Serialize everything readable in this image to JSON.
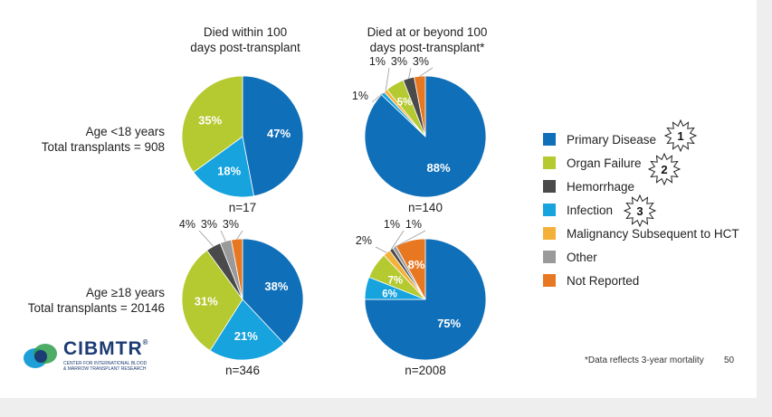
{
  "headers": {
    "col1": "Died within 100 days post-transplant",
    "col1_line1": "Died within 100",
    "col1_line2": "days post-transplant",
    "col2_line1": "Died at or beyond 100",
    "col2_line2": "days post-transplant*"
  },
  "rows": [
    {
      "line1": "Age <18 years",
      "line2": "Total transplants = 908"
    },
    {
      "line1": "Age ≥18 years",
      "line2": "Total transplants = 20146"
    }
  ],
  "legend": [
    {
      "label": "Primary Disease",
      "color": "#0f6fb8"
    },
    {
      "label": "Organ Failure",
      "color": "#b5c930"
    },
    {
      "label": "Hemorrhage",
      "color": "#4a4a4a"
    },
    {
      "label": "Infection",
      "color": "#16a3de"
    },
    {
      "label": "Malignancy Subsequent to HCT",
      "color": "#f4b13a"
    },
    {
      "label": "Other",
      "color": "#9a9a9a"
    },
    {
      "label": "Not Reported",
      "color": "#e87722"
    }
  ],
  "annotations": [
    "1",
    "2",
    "3"
  ],
  "footnote": "*Data reflects 3-year mortality",
  "page_number": "50",
  "logo": {
    "name": "CIBMTR",
    "reg": "®",
    "sub1": "CENTER FOR INTERNATIONAL BLOOD",
    "sub2": "& MARROW TRANSPLANT RESEARCH"
  },
  "chart_data": [
    {
      "type": "pie",
      "row": "Age <18 years",
      "column": "Died within 100 days post-transplant",
      "n_label": "n=17",
      "slices": [
        {
          "category": "Primary Disease",
          "value": 47,
          "label": "47%"
        },
        {
          "category": "Infection",
          "value": 18,
          "label": "18%"
        },
        {
          "category": "Organ Failure",
          "value": 35,
          "label": "35%"
        }
      ]
    },
    {
      "type": "pie",
      "row": "Age <18 years",
      "column": "Died at or beyond 100 days post-transplant",
      "n_label": "n=140",
      "slices": [
        {
          "category": "Primary Disease",
          "value": 88,
          "label": "88%"
        },
        {
          "category": "Infection",
          "value": 1,
          "label": "1%"
        },
        {
          "category": "Malignancy Subsequent to HCT",
          "value": 1,
          "label": "1%"
        },
        {
          "category": "Organ Failure",
          "value": 5,
          "label": "5%"
        },
        {
          "category": "Hemorrhage",
          "value": 3,
          "label": "3%"
        },
        {
          "category": "Not Reported",
          "value": 3,
          "label": "3%"
        }
      ]
    },
    {
      "type": "pie",
      "row": "Age ≥18 years",
      "column": "Died within 100 days post-transplant",
      "n_label": "n=346",
      "slices": [
        {
          "category": "Primary Disease",
          "value": 38,
          "label": "38%"
        },
        {
          "category": "Infection",
          "value": 21,
          "label": "21%"
        },
        {
          "category": "Organ Failure",
          "value": 31,
          "label": "31%"
        },
        {
          "category": "Hemorrhage",
          "value": 4,
          "label": "4%"
        },
        {
          "category": "Other",
          "value": 3,
          "label": "3%"
        },
        {
          "category": "Not Reported",
          "value": 3,
          "label": "3%"
        }
      ]
    },
    {
      "type": "pie",
      "row": "Age ≥18 years",
      "column": "Died at or beyond 100 days post-transplant",
      "n_label": "n=2008",
      "slices": [
        {
          "category": "Primary Disease",
          "value": 75,
          "label": "75%"
        },
        {
          "category": "Infection",
          "value": 6,
          "label": "6%"
        },
        {
          "category": "Organ Failure",
          "value": 7,
          "label": "7%"
        },
        {
          "category": "Malignancy Subsequent to HCT",
          "value": 2,
          "label": "2%"
        },
        {
          "category": "Hemorrhage",
          "value": 1,
          "label": "1%"
        },
        {
          "category": "Other",
          "value": 1,
          "label": "1%"
        },
        {
          "category": "Not Reported",
          "value": 8,
          "label": "8%"
        }
      ]
    }
  ]
}
